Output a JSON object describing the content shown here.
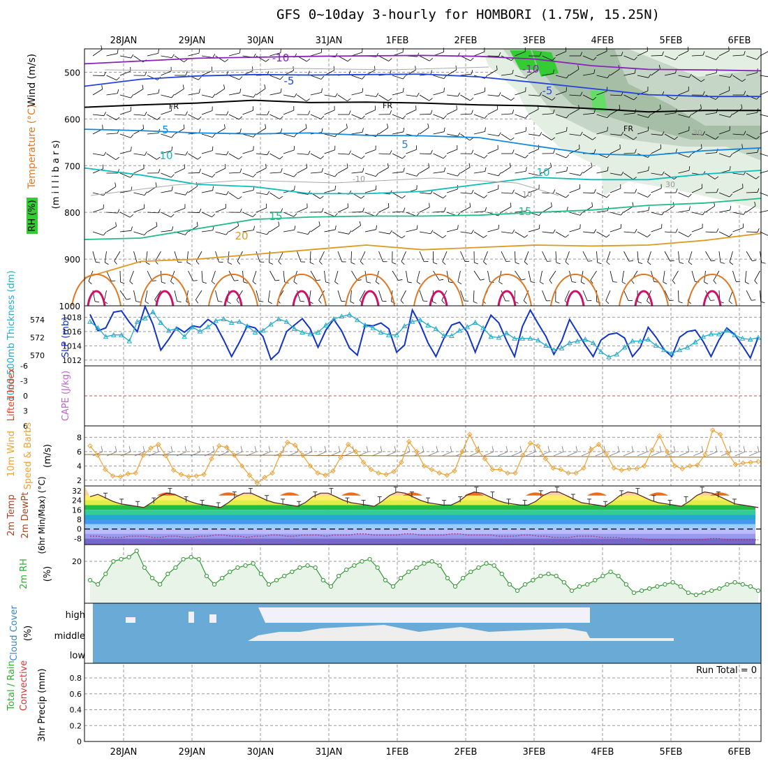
{
  "title": "GFS 0~10day 3-hourly for HOMBORI (1.75W, 15.25N)",
  "date_labels": [
    "28JAN",
    "29JAN",
    "30JAN",
    "31JAN",
    "1FEB",
    "2FEB",
    "3FEB",
    "4FEB",
    "5FEB",
    "6FEB"
  ],
  "colors": {
    "rh": "#33cc33",
    "temp": "#f08020",
    "wind": "#000000",
    "purple": "#9933cc",
    "blue": "#2244dd",
    "cyan": "#22aacc"
  },
  "chart_data": [
    {
      "id": "upper-air",
      "type": "contour",
      "title": "",
      "ylabel_parts": [
        "RH (%)",
        "Temperature (°C)",
        "Wind (m/s)"
      ],
      "ylabel_units": "(m i l l i b a r s)",
      "ylim": [
        1000,
        450
      ],
      "y_ticks": [
        500,
        600,
        700,
        800,
        900,
        1000
      ],
      "isotherm_labels": [
        "-10",
        "-10",
        "-5",
        "-5",
        "FR",
        "FR",
        "FR",
        "5",
        "5",
        "10",
        "10",
        "15",
        "15",
        "20",
        "-10",
        "10",
        "30",
        "30"
      ],
      "isotherms": [
        {
          "name": "-10",
          "levels": [
            482,
            476,
            470,
            468,
            466,
            465,
            464,
            466,
            472,
            486,
            494,
            495,
            497
          ]
        },
        {
          "name": "-5",
          "levels": [
            530,
            515,
            508,
            505,
            506,
            505,
            504,
            510,
            522,
            535,
            548,
            552,
            552
          ]
        },
        {
          "name": "FR",
          "levels": [
            575,
            570,
            566,
            560,
            565,
            564,
            566,
            570,
            572,
            578,
            585,
            582,
            582
          ]
        },
        {
          "name": "5",
          "levels": [
            622,
            625,
            630,
            632,
            630,
            635,
            636,
            640,
            658,
            675,
            678,
            668,
            662
          ]
        },
        {
          "name": "10",
          "levels": [
            705,
            720,
            740,
            745,
            760,
            760,
            755,
            740,
            725,
            730,
            730,
            718,
            710
          ]
        },
        {
          "name": "15",
          "levels": [
            858,
            855,
            835,
            815,
            810,
            808,
            808,
            806,
            800,
            795,
            785,
            780,
            770
          ]
        },
        {
          "name": "20",
          "levels": [
            940,
            905,
            900,
            890,
            880,
            870,
            880,
            875,
            870,
            872,
            870,
            860,
            845
          ]
        }
      ]
    },
    {
      "id": "thickness-slp",
      "type": "line",
      "ylabel_left": "1000-500mb Thickness (dm)",
      "ylabel_right": "SLP (mb)",
      "left_ticks": [
        "574",
        "572",
        "570"
      ],
      "right_ticks": [
        "1018",
        "1016",
        "1014",
        "1012"
      ],
      "series": [
        {
          "name": "SLP",
          "values": [
            1018.4,
            1016.1,
            1016.5,
            1018.7,
            1018.9,
            1017.3,
            1016.0,
            1019.5,
            1017.0,
            1013.4,
            1014.9,
            1016.6,
            1015.9,
            1016.8,
            1016.6,
            1017.7,
            1016.9,
            1014.8,
            1012.5,
            1014.5,
            1016.8,
            1016.5,
            1015.3,
            1012.1,
            1013.1,
            1016.0,
            1016.9,
            1017.8,
            1016.4,
            1013.8,
            1016.2,
            1017.7,
            1016.1,
            1013.7,
            1012.7,
            1016.9,
            1016.8,
            1017.2,
            1016.4,
            1013.1,
            1014.1,
            1019.0,
            1017.0,
            1014.4,
            1012.5,
            1015.0,
            1016.9,
            1017.3,
            1015.9,
            1013.1,
            1015.9,
            1018.3,
            1017.2,
            1014.7,
            1012.5,
            1016.7,
            1019.0,
            1017.1,
            1015.3,
            1012.8,
            1014.7,
            1017.7,
            1015.9,
            1014.1,
            1012.5,
            1014.8,
            1015.6,
            1015.8,
            1015.1,
            1012.5,
            1013.8,
            1016.6,
            1015.2,
            1013.5,
            1012.5,
            1015.2,
            1016.0,
            1016.2,
            1014.6,
            1012.5,
            1014.8,
            1016.5,
            1015.6,
            1014.0,
            1012.3,
            1015.2
          ]
        },
        {
          "name": "Thickness",
          "values": [
            573.8,
            573.1,
            572.1,
            572.3,
            572.3,
            571.6,
            573.8,
            574.2,
            574.9,
            573.7,
            572.8,
            573.0,
            572.1,
            573.2,
            572.7,
            573.2,
            573.9,
            574.1,
            573.7,
            573.8,
            573.3,
            572.6,
            572.8,
            573.5,
            574.1,
            573.8,
            573.0,
            572.6,
            572.4,
            572.6,
            573.4,
            574.1,
            574.4,
            574.6,
            574.0,
            573.4,
            573.1,
            572.6,
            572.3,
            572.3,
            573.3,
            573.8,
            574.0,
            573.4,
            573.0,
            572.2,
            572.2,
            572.8,
            573.2,
            573.7,
            573.1,
            572.1,
            572.0,
            572.5,
            571.9,
            571.9,
            571.9,
            571.7,
            571.1,
            570.6,
            570.8,
            571.4,
            571.6,
            571.8,
            571.4,
            570.4,
            569.8,
            570.1,
            570.9,
            571.6,
            571.6,
            571.8,
            571.1,
            570.6,
            570.2,
            570.6,
            570.9,
            571.5,
            572.1,
            572.4,
            572.4,
            572.8,
            572.3,
            571.9,
            571.8,
            572.0
          ]
        }
      ]
    },
    {
      "id": "lifted-index",
      "type": "line",
      "ylabel_left": "Lifted Index",
      "ylabel_right": "CAPE (J/kg)",
      "y_ticks": [
        "-6",
        "-3",
        "0",
        "3",
        "6"
      ],
      "series": [
        {
          "name": "Lifted Index",
          "values": []
        }
      ]
    },
    {
      "id": "wind10m",
      "type": "line",
      "ylabel_left": "10m Wind",
      "ylabel_right": "Speed & Barbs",
      "units": "(m/s)",
      "y_ticks": [
        "8",
        "6",
        "4",
        "2"
      ],
      "series": [
        {
          "name": "10m Wind Speed",
          "values": [
            6.8,
            5.5,
            3.5,
            2.6,
            2.5,
            2.9,
            3.0,
            5.5,
            6.5,
            7.0,
            5.4,
            3.4,
            2.8,
            2.5,
            2.6,
            2.8,
            5.0,
            6.8,
            6.6,
            5.5,
            4.0,
            2.7,
            1.6,
            2.4,
            3.0,
            5.5,
            7.3,
            6.9,
            5.5,
            4.0,
            3.0,
            2.7,
            3.3,
            5.2,
            7.0,
            6.0,
            4.5,
            3.5,
            3.0,
            2.8,
            3.2,
            4.5,
            7.4,
            6.0,
            4.0,
            3.5,
            3.0,
            2.7,
            3.3,
            6.0,
            8.4,
            6.3,
            5.0,
            3.5,
            3.5,
            3.0,
            3.0,
            5.5,
            7.2,
            6.8,
            5.0,
            3.7,
            3.5,
            3.0,
            3.0,
            3.7,
            6.3,
            7.0,
            5.7,
            3.7,
            3.4,
            3.6,
            3.6,
            4.0,
            6.2,
            8.2,
            6.0,
            4.0,
            3.6,
            4.0,
            4.1,
            5.6,
            9.0,
            8.4,
            5.8,
            4.2,
            4.4,
            4.5,
            4.6
          ]
        }
      ]
    },
    {
      "id": "temperature2m",
      "type": "area",
      "ylabel_left": "2m Temp",
      "ylabel_mid": "2m DewPt",
      "ylabel_right": "(6hr Min/Max) (°C)",
      "y_ticks": [
        "32",
        "24",
        "16",
        "8",
        "0",
        "-8"
      ],
      "series": [
        {
          "name": "2m Temp",
          "values": [
            27,
            29,
            26,
            23,
            21,
            20,
            19,
            18,
            22,
            27,
            30,
            29,
            26,
            23,
            21,
            20,
            19,
            18,
            22,
            27,
            30,
            30,
            27,
            24,
            22,
            21,
            20,
            19,
            22,
            27,
            30,
            30,
            27,
            24,
            22,
            21,
            20,
            19,
            23,
            28,
            31,
            30,
            27,
            24,
            22,
            21,
            20,
            20,
            23,
            28,
            31,
            30,
            27,
            24,
            22,
            21,
            20,
            20,
            23,
            28,
            31,
            31,
            28,
            25,
            22,
            21,
            20,
            19,
            23,
            28,
            31,
            30,
            27,
            24,
            22,
            21,
            20,
            19,
            23,
            28,
            31,
            30,
            27,
            24,
            21,
            20,
            19,
            18
          ]
        },
        {
          "name": "2m DewPt",
          "values": [
            -6,
            -6,
            -7,
            -7,
            -7,
            -6,
            -6,
            -6,
            -7,
            -7,
            -6,
            -6,
            -7,
            -7,
            -6,
            -6,
            -5,
            -5,
            -6,
            -6,
            -7,
            -6,
            -6,
            -5,
            -5,
            -6,
            -6,
            -5,
            -5,
            -5,
            -6,
            -5,
            -5,
            -5,
            -4,
            -4,
            -5,
            -5,
            -5,
            -5,
            -4,
            -4,
            -5,
            -5,
            -5,
            -5,
            -4,
            -4,
            -5,
            -5,
            -5,
            -5,
            -6,
            -6,
            -6,
            -5,
            -5,
            -6,
            -6,
            -7,
            -7,
            -7,
            -6,
            -6,
            -6,
            -7,
            -7,
            -7,
            -8,
            -8,
            -8,
            -9,
            -9,
            -9,
            -9,
            -9,
            -9,
            -9,
            -9,
            -8,
            -8,
            -9,
            -9,
            -9,
            -9,
            -9
          ]
        }
      ]
    },
    {
      "id": "rh2m",
      "type": "area",
      "ylabel_left": "2m RH",
      "units": "(%)",
      "y_ticks": [
        "20"
      ],
      "series": [
        {
          "name": "2m RH",
          "values": [
            11,
            9,
            14,
            20,
            21,
            22,
            25,
            17,
            12,
            9,
            14,
            17,
            21,
            22,
            21,
            13,
            9,
            12,
            15,
            17,
            18,
            19,
            14,
            9,
            11,
            13,
            15,
            17,
            18,
            17,
            11,
            8,
            13,
            16,
            18,
            20,
            21,
            17,
            11,
            8,
            12,
            15,
            17,
            19,
            20,
            18,
            12,
            8,
            12,
            15,
            17,
            19,
            18,
            14,
            9,
            6,
            9,
            11,
            13,
            14,
            13,
            10,
            6,
            8,
            9,
            11,
            13,
            15,
            13,
            9,
            5,
            6,
            7,
            8,
            9,
            10,
            8,
            5,
            4,
            5,
            6,
            7,
            9,
            10,
            9,
            8,
            6
          ]
        }
      ]
    },
    {
      "id": "cloud-cover",
      "type": "heatmap",
      "ylabel_left": "Cloud Cover",
      "units": "(%)",
      "rows": [
        "high",
        "middle",
        "low"
      ],
      "high": [
        0,
        0,
        0,
        0,
        0,
        0,
        0,
        0,
        0,
        0,
        0,
        0,
        0,
        0,
        0,
        0,
        0,
        0,
        0,
        0,
        0,
        0,
        0,
        0,
        0,
        0,
        0,
        0,
        0,
        0,
        0,
        0,
        0,
        0,
        0,
        0,
        0,
        0,
        0,
        0,
        0,
        0,
        0,
        0,
        0,
        0,
        0,
        0,
        0,
        0,
        0,
        0,
        0,
        0,
        0,
        0,
        0,
        0,
        0,
        0,
        0,
        0,
        0,
        0,
        0,
        0,
        0,
        0,
        0,
        0,
        0,
        0,
        0,
        0,
        0,
        0,
        0,
        0,
        0,
        0,
        0,
        0,
        0,
        0,
        0,
        0,
        0
      ],
      "middle": [
        0,
        0,
        0,
        0,
        0,
        0,
        0,
        0,
        0,
        0,
        0,
        0,
        0,
        0,
        0,
        0,
        0,
        0,
        0,
        0,
        0,
        0,
        0,
        0,
        0,
        0,
        0,
        0,
        0,
        0,
        0,
        0,
        0,
        0,
        0,
        0,
        0,
        0,
        0,
        0,
        0,
        0,
        0,
        0,
        0,
        0,
        0,
        0,
        0,
        0,
        0,
        0,
        0,
        0,
        0,
        0,
        0,
        0,
        0,
        0,
        0,
        0,
        0,
        0,
        0,
        0,
        0,
        0,
        0,
        0,
        0,
        0,
        0,
        0,
        0,
        0,
        0,
        0,
        0,
        0,
        0,
        0,
        0,
        0,
        0,
        0,
        0
      ],
      "low": []
    },
    {
      "id": "precip",
      "type": "bar",
      "ylabel_left": "Total / Rain",
      "ylabel_left2": "Convective",
      "ylabel_right": "3hr Precip (mm)",
      "y_ticks": [
        "0.8",
        "0.6",
        "0.4",
        "0.2",
        "0"
      ],
      "ylim": [
        0,
        0.95
      ],
      "run_total": "Run Total = 0",
      "values": []
    }
  ]
}
